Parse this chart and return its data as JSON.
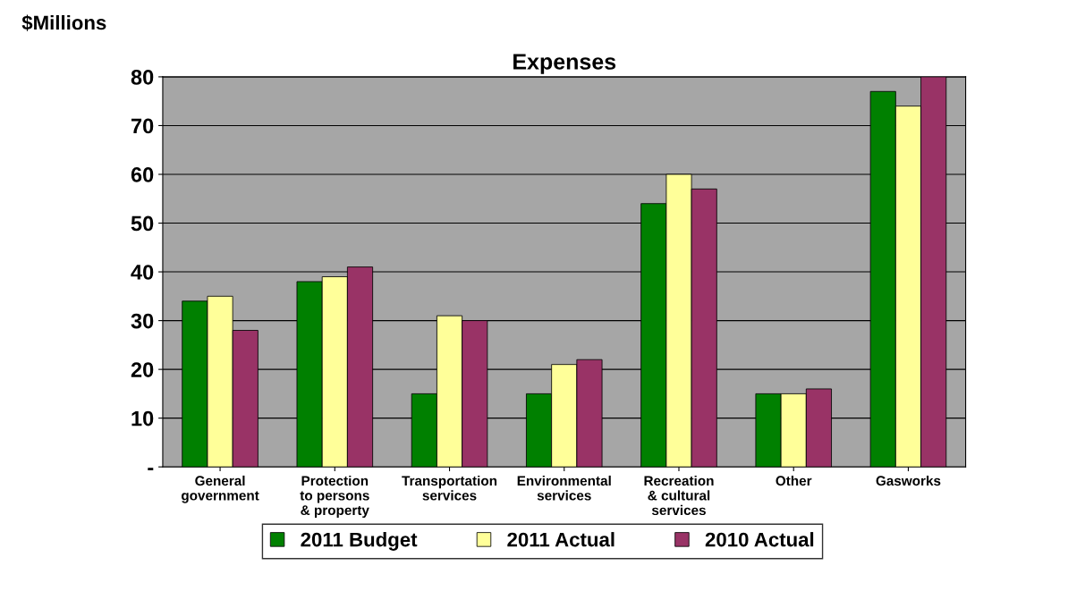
{
  "chart_data": {
    "type": "bar",
    "title": "Expenses",
    "ylabel": "$Millions",
    "categories": [
      "General\ngovernment",
      "Protection\nto persons\n& property",
      "Transportation\nservices",
      "Environmental\nservices",
      "Recreation\n& cultural\nservices",
      "Other",
      "Gasworks"
    ],
    "series": [
      {
        "name": "2011 Budget",
        "color": "#008000",
        "values": [
          34,
          38,
          15,
          15,
          54,
          15,
          77
        ]
      },
      {
        "name": "2011 Actual",
        "color": "#ffff99",
        "values": [
          35,
          39,
          31,
          21,
          60,
          15,
          74
        ]
      },
      {
        "name": "2010 Actual",
        "color": "#993366",
        "values": [
          28,
          41,
          30,
          22,
          57,
          16,
          80
        ]
      }
    ],
    "ylim": [
      0,
      80
    ],
    "yticks": [
      {
        "value": 0,
        "label": "-"
      },
      10,
      20,
      30,
      40,
      50,
      60,
      70,
      80
    ],
    "grid": "y",
    "legend": "bottom"
  }
}
